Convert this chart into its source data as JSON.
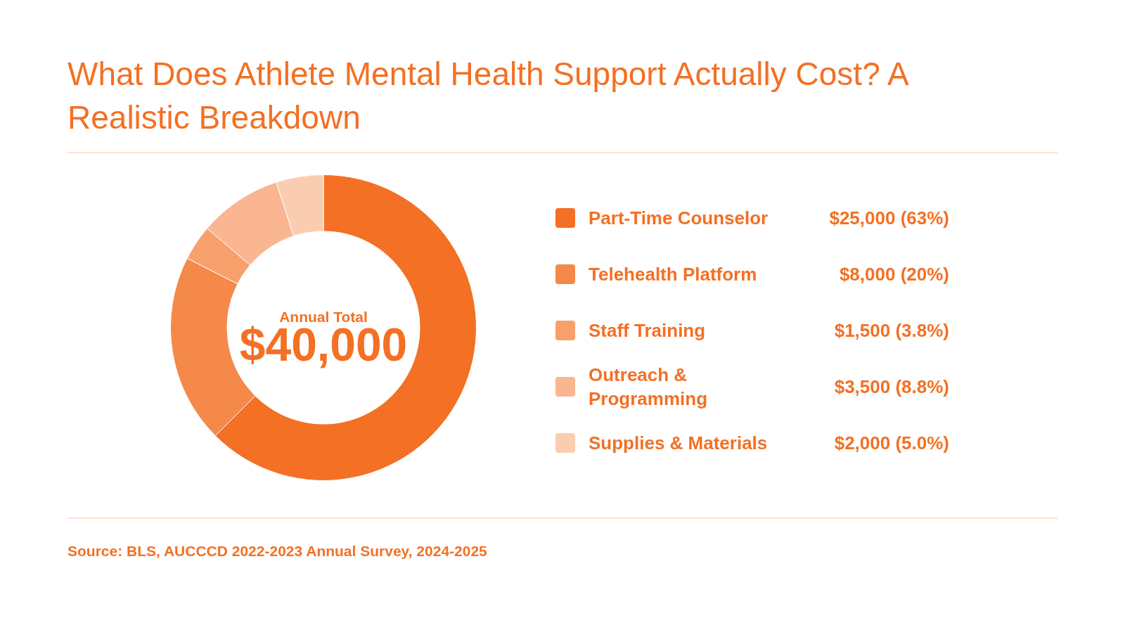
{
  "chart_data": {
    "type": "donut",
    "title": "What Does Athlete Mental Health Support Actually Cost? A Realistic Breakdown",
    "categories": [
      "Part-Time Counselor",
      "Telehealth Platform",
      "Staff Training",
      "Outreach & Programming",
      "Supplies & Materials"
    ],
    "values": [
      25000,
      8000,
      1500,
      3500,
      2000
    ],
    "colors": [
      "#f37024",
      "#f5894a",
      "#f7a06c",
      "#f9b690",
      "#fbcdb0"
    ],
    "value_labels": [
      "$25,000 (63%)",
      "$8,000 (20%)",
      "$1,500 (3.8%)",
      "$3,500 (8.8%)",
      "$2,000 (5.0%)"
    ],
    "legend": "right",
    "annotations": [
      "Annual Total",
      "$40,000",
      "Source: BLS, AUCCCD 2022-2023 Annual Survey, 2024-2025"
    ]
  }
}
